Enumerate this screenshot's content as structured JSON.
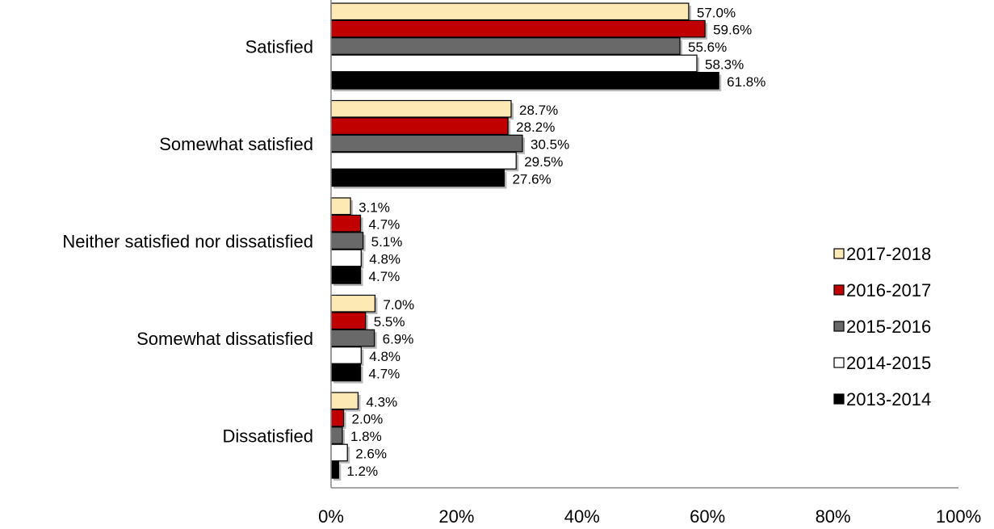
{
  "chart_data": {
    "type": "bar",
    "orientation": "horizontal",
    "categories": [
      "Satisfied",
      "Somewhat satisfied",
      "Neither satisfied nor dissatisfied",
      "Somewhat dissatisfied",
      "Dissatisfied"
    ],
    "series": [
      {
        "name": "2017-2018",
        "color": "#fde9b4",
        "values": [
          57.0,
          28.7,
          3.1,
          7.0,
          4.3
        ],
        "labels": [
          "57.0%",
          "28.7%",
          "3.1%",
          "7.0%",
          "4.3%"
        ]
      },
      {
        "name": "2016-2017",
        "color": "#c00000",
        "values": [
          59.6,
          28.2,
          4.7,
          5.5,
          2.0
        ],
        "labels": [
          "59.6%",
          "28.2%",
          "4.7%",
          "5.5%",
          "2.0%"
        ]
      },
      {
        "name": "2015-2016",
        "color": "#696969",
        "values": [
          55.6,
          30.5,
          5.1,
          6.9,
          1.8
        ],
        "labels": [
          "55.6%",
          "30.5%",
          "5.1%",
          "6.9%",
          "1.8%"
        ]
      },
      {
        "name": "2014-2015",
        "color": "#ffffff",
        "values": [
          58.3,
          29.5,
          4.8,
          4.8,
          2.6
        ],
        "labels": [
          "58.3%",
          "29.5%",
          "4.8%",
          "4.8%",
          "2.6%"
        ]
      },
      {
        "name": "2013-2014",
        "color": "#000000",
        "values": [
          61.8,
          27.6,
          4.7,
          4.7,
          1.2
        ],
        "labels": [
          "61.8%",
          "27.6%",
          "4.7%",
          "4.7%",
          "1.2%"
        ]
      }
    ],
    "xlim": [
      0,
      100
    ],
    "xticks": [
      0,
      20,
      40,
      60,
      80,
      100
    ],
    "xtick_labels": [
      "0%",
      "20%",
      "40%",
      "60%",
      "80%",
      "100%"
    ],
    "legend_position": "right",
    "grid": false
  }
}
